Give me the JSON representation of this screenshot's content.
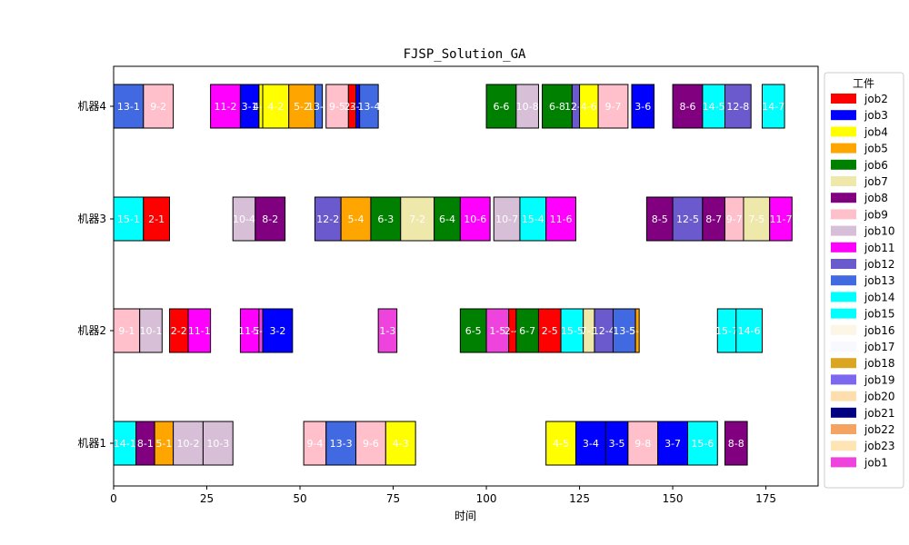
{
  "chart_data": {
    "type": "gantt",
    "title": "FJSP_Solution_GA",
    "xlabel": "时间",
    "ylabel": "",
    "xlim": [
      0,
      189
    ],
    "x_ticks": [
      0,
      25,
      50,
      75,
      100,
      125,
      150,
      175
    ],
    "machines": [
      "机器1",
      "机器2",
      "机器3",
      "机器4"
    ],
    "legend": {
      "title": "工件",
      "placement": "right",
      "entries": [
        {
          "name": "job2",
          "color": "#FF0000"
        },
        {
          "name": "job3",
          "color": "#0000FF"
        },
        {
          "name": "job4",
          "color": "#FFFF00"
        },
        {
          "name": "job5",
          "color": "#FFA500"
        },
        {
          "name": "job6",
          "color": "#008000"
        },
        {
          "name": "job7",
          "color": "#EEE8AA"
        },
        {
          "name": "job8",
          "color": "#800080"
        },
        {
          "name": "job9",
          "color": "#FFC0CB"
        },
        {
          "name": "job10",
          "color": "#D8BFD8"
        },
        {
          "name": "job11",
          "color": "#FF00FF"
        },
        {
          "name": "job12",
          "color": "#6A5ACD"
        },
        {
          "name": "job13",
          "color": "#4169E1"
        },
        {
          "name": "job14",
          "color": "#00FFFF"
        },
        {
          "name": "job15",
          "color": "#00FFFF"
        },
        {
          "name": "job16",
          "color": "#FDF5E6"
        },
        {
          "name": "job17",
          "color": "#F8F8FF"
        },
        {
          "name": "job18",
          "color": "#DAA520"
        },
        {
          "name": "job19",
          "color": "#7B68EE"
        },
        {
          "name": "job20",
          "color": "#FFDEAD"
        },
        {
          "name": "job21",
          "color": "#000080"
        },
        {
          "name": "job22",
          "color": "#F4A460"
        },
        {
          "name": "job23",
          "color": "#FFE4B5"
        },
        {
          "name": "job1",
          "color": "#EE44DD"
        }
      ]
    },
    "tasks": [
      {
        "machine": "机器4",
        "label": "13-1",
        "start": 0,
        "end": 8,
        "color": "#4169E1"
      },
      {
        "machine": "机器4",
        "label": "9-2",
        "start": 8,
        "end": 16,
        "color": "#FFC0CB"
      },
      {
        "machine": "机器4",
        "label": "11-2",
        "start": 26,
        "end": 34,
        "color": "#FF00FF"
      },
      {
        "machine": "机器4",
        "label": "3-1",
        "start": 34,
        "end": 39,
        "color": "#0000FF"
      },
      {
        "machine": "机器4",
        "label": "4-1",
        "start": 39,
        "end": 40,
        "color": "#FFFF00"
      },
      {
        "machine": "机器4",
        "label": "4-2",
        "start": 40,
        "end": 47,
        "color": "#FFFF00"
      },
      {
        "machine": "机器4",
        "label": "5-2",
        "start": 47,
        "end": 54,
        "color": "#FFA500"
      },
      {
        "machine": "机器4",
        "label": "13-2",
        "start": 54,
        "end": 56,
        "color": "#4169E1"
      },
      {
        "machine": "机器4",
        "label": "9-5",
        "start": 57,
        "end": 63,
        "color": "#FFC0CB"
      },
      {
        "machine": "机器4",
        "label": "2-3",
        "start": 63,
        "end": 65,
        "color": "#FF0000"
      },
      {
        "machine": "机器4",
        "label": "3-2",
        "start": 65,
        "end": 66,
        "color": "#0000FF"
      },
      {
        "machine": "机器4",
        "label": "13-4",
        "start": 66,
        "end": 71,
        "color": "#4169E1"
      },
      {
        "machine": "机器4",
        "label": "6-6",
        "start": 100,
        "end": 108,
        "color": "#008000"
      },
      {
        "machine": "机器4",
        "label": "10-8",
        "start": 108,
        "end": 114,
        "color": "#D8BFD8"
      },
      {
        "machine": "机器4",
        "label": "6-8",
        "start": 115,
        "end": 123,
        "color": "#008000"
      },
      {
        "machine": "机器4",
        "label": "12-6",
        "start": 123,
        "end": 125,
        "color": "#6A5ACD"
      },
      {
        "machine": "机器4",
        "label": "4-6",
        "start": 125,
        "end": 130,
        "color": "#FFFF00"
      },
      {
        "machine": "机器4",
        "label": "9-7",
        "start": 130,
        "end": 138,
        "color": "#FFC0CB"
      },
      {
        "machine": "机器4",
        "label": "3-6",
        "start": 139,
        "end": 145,
        "color": "#0000FF"
      },
      {
        "machine": "机器4",
        "label": "8-6",
        "start": 150,
        "end": 158,
        "color": "#800080"
      },
      {
        "machine": "机器4",
        "label": "14-5",
        "start": 158,
        "end": 164,
        "color": "#00FFFF"
      },
      {
        "machine": "机器4",
        "label": "12-8",
        "start": 164,
        "end": 171,
        "color": "#6A5ACD"
      },
      {
        "machine": "机器4",
        "label": "14-7",
        "start": 174,
        "end": 180,
        "color": "#00FFFF"
      },
      {
        "machine": "机器3",
        "label": "15-1",
        "start": 0,
        "end": 8,
        "color": "#00FFFF"
      },
      {
        "machine": "机器3",
        "label": "2-1",
        "start": 8,
        "end": 15,
        "color": "#FF0000"
      },
      {
        "machine": "机器3",
        "label": "10-4",
        "start": 32,
        "end": 38,
        "color": "#D8BFD8"
      },
      {
        "machine": "机器3",
        "label": "8-2",
        "start": 38,
        "end": 46,
        "color": "#800080"
      },
      {
        "machine": "机器3",
        "label": "12-2",
        "start": 54,
        "end": 61,
        "color": "#6A5ACD"
      },
      {
        "machine": "机器3",
        "label": "5-4",
        "start": 61,
        "end": 69,
        "color": "#FFA500"
      },
      {
        "machine": "机器3",
        "label": "6-3",
        "start": 69,
        "end": 77,
        "color": "#008000"
      },
      {
        "machine": "机器3",
        "label": "7-2",
        "start": 77,
        "end": 86,
        "color": "#EEE8AA"
      },
      {
        "machine": "机器3",
        "label": "6-4",
        "start": 86,
        "end": 93,
        "color": "#008000"
      },
      {
        "machine": "机器3",
        "label": "10-6",
        "start": 93,
        "end": 101,
        "color": "#FF00FF"
      },
      {
        "machine": "机器3",
        "label": "10-7",
        "start": 102,
        "end": 109,
        "color": "#D8BFD8"
      },
      {
        "machine": "机器3",
        "label": "15-4",
        "start": 109,
        "end": 116,
        "color": "#00FFFF"
      },
      {
        "machine": "机器3",
        "label": "11-6",
        "start": 116,
        "end": 124,
        "color": "#FF00FF"
      },
      {
        "machine": "机器3",
        "label": "8-5",
        "start": 143,
        "end": 150,
        "color": "#800080"
      },
      {
        "machine": "机器3",
        "label": "12-5",
        "start": 150,
        "end": 158,
        "color": "#6A5ACD"
      },
      {
        "machine": "机器3",
        "label": "8-7",
        "start": 158,
        "end": 164,
        "color": "#800080"
      },
      {
        "machine": "机器3",
        "label": "9-7",
        "start": 164,
        "end": 169,
        "color": "#FFC0CB"
      },
      {
        "machine": "机器3",
        "label": "7-5",
        "start": 169,
        "end": 176,
        "color": "#EEE8AA"
      },
      {
        "machine": "机器3",
        "label": "11-7",
        "start": 176,
        "end": 182,
        "color": "#FF00FF"
      },
      {
        "machine": "机器2",
        "label": "9-1",
        "start": 0,
        "end": 7,
        "color": "#FFC0CB"
      },
      {
        "machine": "机器2",
        "label": "10-1",
        "start": 7,
        "end": 13,
        "color": "#D8BFD8"
      },
      {
        "machine": "机器2",
        "label": "2-2",
        "start": 15,
        "end": 20,
        "color": "#FF0000"
      },
      {
        "machine": "机器2",
        "label": "11-1",
        "start": 20,
        "end": 26,
        "color": "#FF00FF"
      },
      {
        "machine": "机器2",
        "label": "11-3",
        "start": 34,
        "end": 39,
        "color": "#FF00FF"
      },
      {
        "machine": "机器2",
        "label": "5-3",
        "start": 39,
        "end": 40,
        "color": "#EE44DD"
      },
      {
        "machine": "机器2",
        "label": "3-2",
        "start": 40,
        "end": 48,
        "color": "#0000FF"
      },
      {
        "machine": "机器2",
        "label": "1-3",
        "start": 71,
        "end": 76,
        "color": "#EE44DD"
      },
      {
        "machine": "机器2",
        "label": "6-5",
        "start": 93,
        "end": 100,
        "color": "#008000"
      },
      {
        "machine": "机器2",
        "label": "1-5",
        "start": 100,
        "end": 106,
        "color": "#EE44DD"
      },
      {
        "machine": "机器2",
        "label": "2-4",
        "start": 106,
        "end": 108,
        "color": "#FF0000"
      },
      {
        "machine": "机器2",
        "label": "6-7",
        "start": 108,
        "end": 114,
        "color": "#008000"
      },
      {
        "machine": "机器2",
        "label": "2-5",
        "start": 114,
        "end": 120,
        "color": "#FF0000"
      },
      {
        "machine": "机器2",
        "label": "15-5",
        "start": 120,
        "end": 126,
        "color": "#00FFFF"
      },
      {
        "machine": "机器2",
        "label": "7-3",
        "start": 126,
        "end": 129,
        "color": "#EEE8AA"
      },
      {
        "machine": "机器2",
        "label": "12-4",
        "start": 129,
        "end": 134,
        "color": "#6A5ACD"
      },
      {
        "machine": "机器2",
        "label": "13-5",
        "start": 134,
        "end": 140,
        "color": "#4169E1"
      },
      {
        "machine": "机器2",
        "label": "5-5",
        "start": 140,
        "end": 141,
        "color": "#FFA500"
      },
      {
        "machine": "机器2",
        "label": "15-7",
        "start": 162,
        "end": 167,
        "color": "#00FFFF"
      },
      {
        "machine": "机器2",
        "label": "14-6",
        "start": 167,
        "end": 174,
        "color": "#00FFFF"
      },
      {
        "machine": "机器1",
        "label": "14-1",
        "start": 0,
        "end": 6,
        "color": "#00FFFF"
      },
      {
        "machine": "机器1",
        "label": "8-1",
        "start": 6,
        "end": 11,
        "color": "#800080"
      },
      {
        "machine": "机器1",
        "label": "5-1",
        "start": 11,
        "end": 16,
        "color": "#FFA500"
      },
      {
        "machine": "机器1",
        "label": "10-2",
        "start": 16,
        "end": 24,
        "color": "#D8BFD8"
      },
      {
        "machine": "机器1",
        "label": "10-3",
        "start": 24,
        "end": 32,
        "color": "#D8BFD8"
      },
      {
        "machine": "机器1",
        "label": "9-4",
        "start": 51,
        "end": 57,
        "color": "#FFC0CB"
      },
      {
        "machine": "机器1",
        "label": "13-3",
        "start": 57,
        "end": 65,
        "color": "#4169E1"
      },
      {
        "machine": "机器1",
        "label": "9-6",
        "start": 65,
        "end": 73,
        "color": "#FFC0CB"
      },
      {
        "machine": "机器1",
        "label": "4-3",
        "start": 73,
        "end": 81,
        "color": "#FFFF00"
      },
      {
        "machine": "机器1",
        "label": "4-5",
        "start": 116,
        "end": 124,
        "color": "#FFFF00"
      },
      {
        "machine": "机器1",
        "label": "3-4",
        "start": 124,
        "end": 132,
        "color": "#0000FF"
      },
      {
        "machine": "机器1",
        "label": "3-5",
        "start": 132,
        "end": 138,
        "color": "#0000FF"
      },
      {
        "machine": "机器1",
        "label": "9-8",
        "start": 138,
        "end": 146,
        "color": "#FFC0CB"
      },
      {
        "machine": "机器1",
        "label": "3-7",
        "start": 146,
        "end": 154,
        "color": "#0000FF"
      },
      {
        "machine": "机器1",
        "label": "15-6",
        "start": 154,
        "end": 162,
        "color": "#00FFFF"
      },
      {
        "machine": "机器1",
        "label": "8-8",
        "start": 164,
        "end": 170,
        "color": "#800080"
      }
    ]
  }
}
